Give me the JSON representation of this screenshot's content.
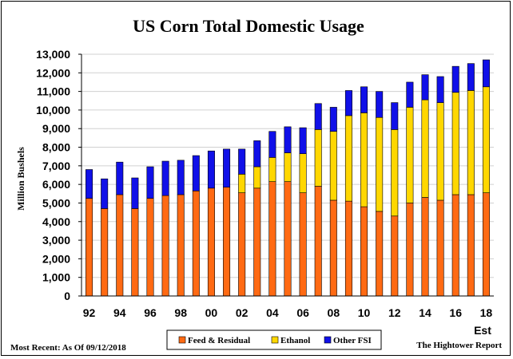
{
  "chart_data": {
    "type": "bar",
    "stacked": true,
    "title": "US Corn Total Domestic Usage",
    "xlabel": "",
    "ylabel": "Million Bushels",
    "ylim": [
      0,
      13000
    ],
    "yticks": [
      0,
      1000,
      2000,
      3000,
      4000,
      5000,
      6000,
      7000,
      8000,
      9000,
      10000,
      11000,
      12000,
      13000
    ],
    "ytick_labels": [
      "0",
      "1,000",
      "2,000",
      "3,000",
      "4,000",
      "5,000",
      "6,000",
      "7,000",
      "8,000",
      "9,000",
      "10,000",
      "11,000",
      "12,000",
      "13,000"
    ],
    "categories": [
      "92",
      "93",
      "94",
      "95",
      "96",
      "97",
      "98",
      "99",
      "00",
      "01",
      "02",
      "03",
      "04",
      "05",
      "06",
      "07",
      "08",
      "09",
      "10",
      "11",
      "12",
      "13",
      "14",
      "15",
      "16",
      "17",
      "18"
    ],
    "xtick_labels": [
      "92",
      "94",
      "96",
      "98",
      "00",
      "02",
      "04",
      "06",
      "08",
      "10",
      "12",
      "14",
      "16",
      "18"
    ],
    "est_label": "Est",
    "series": [
      {
        "name": "Feed & Residual",
        "color": "#FF6A13",
        "values": [
          5250,
          4700,
          5450,
          4700,
          5250,
          5400,
          5450,
          5650,
          5800,
          5850,
          5550,
          5800,
          6150,
          6150,
          5550,
          5900,
          5150,
          5100,
          4800,
          4550,
          4300,
          5000,
          5300,
          5150,
          5450,
          5450,
          5550
        ]
      },
      {
        "name": "Ethanol",
        "color": "#FFD700",
        "values": [
          0,
          0,
          0,
          0,
          0,
          0,
          0,
          0,
          0,
          0,
          1000,
          1150,
          1300,
          1550,
          2100,
          3050,
          3700,
          4600,
          5050,
          5050,
          4650,
          5150,
          5250,
          5250,
          5500,
          5600,
          5700
        ]
      },
      {
        "name": "Other FSI",
        "color": "#1010E8",
        "values": [
          1550,
          1600,
          1750,
          1650,
          1700,
          1850,
          1850,
          1900,
          2000,
          2050,
          1350,
          1400,
          1400,
          1400,
          1400,
          1400,
          1300,
          1350,
          1400,
          1400,
          1450,
          1350,
          1350,
          1400,
          1400,
          1450,
          1450
        ]
      }
    ],
    "legend": [
      "Feed & Residual",
      "Ethanol",
      "Other FSI"
    ],
    "legend_position": "bottom"
  },
  "notes": {
    "most_recent": "Most Recent: As Of 09/12/2018",
    "source": "The Hightower Report"
  },
  "colors": {
    "plot_background": "#FFFFFF",
    "grid": "#D0D0D0"
  }
}
